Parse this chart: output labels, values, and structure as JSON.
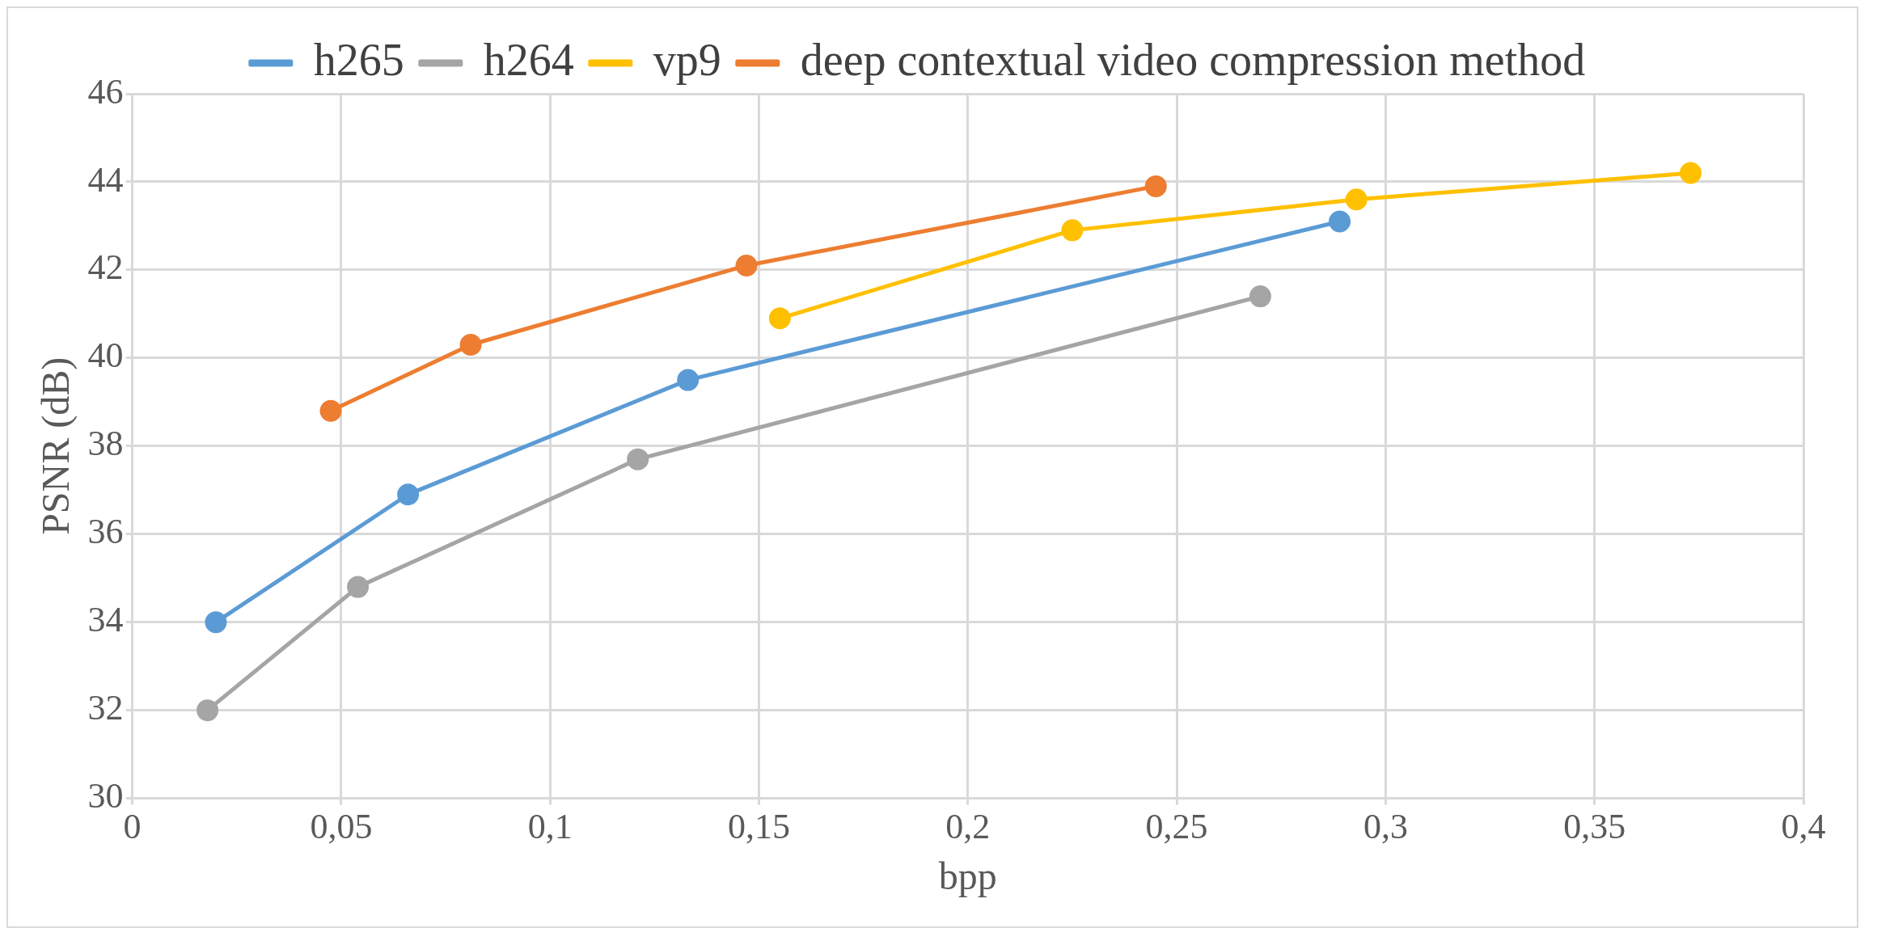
{
  "chart_data": {
    "type": "line",
    "xlabel": "bpp",
    "ylabel": "PSNR (dB)",
    "xlim": [
      0,
      0.4
    ],
    "xticks": [
      0,
      {
        "value": 0.05,
        "label": "0,05"
      },
      {
        "value": 0.1,
        "label": "0,1"
      },
      {
        "value": 0.15,
        "label": "0,15"
      },
      {
        "value": 0.2,
        "label": "0,2"
      },
      {
        "value": 0.25,
        "label": "0,25"
      },
      {
        "value": 0.3,
        "label": "0,3"
      },
      {
        "value": 0.35,
        "label": "0,35"
      },
      {
        "value": 0.4,
        "label": "0,4"
      }
    ],
    "ylim": [
      30,
      46
    ],
    "yticks": [
      30,
      32,
      34,
      36,
      38,
      40,
      42,
      44,
      46
    ],
    "grid": true,
    "legend": "top",
    "marker": "circle",
    "line_style": "solid",
    "series": [
      {
        "name": "h265",
        "color": "#5b9bd5",
        "x": [
          0.02,
          0.066,
          0.133,
          0.289
        ],
        "values": [
          34.0,
          36.9,
          39.5,
          43.1
        ]
      },
      {
        "name": "h264",
        "color": "#a5a5a5",
        "x": [
          0.018,
          0.054,
          0.121,
          0.27
        ],
        "values": [
          32.0,
          34.8,
          37.7,
          41.4
        ]
      },
      {
        "name": "vp9",
        "color": "#ffc000",
        "x": [
          0.155,
          0.225,
          0.293,
          0.373
        ],
        "values": [
          40.9,
          42.9,
          43.6,
          44.2
        ]
      },
      {
        "name": "deep contextual video compression method",
        "color": "#ed7d31",
        "x": [
          0.0475,
          0.081,
          0.147,
          0.245
        ],
        "values": [
          38.8,
          40.3,
          42.1,
          43.9
        ]
      }
    ]
  }
}
